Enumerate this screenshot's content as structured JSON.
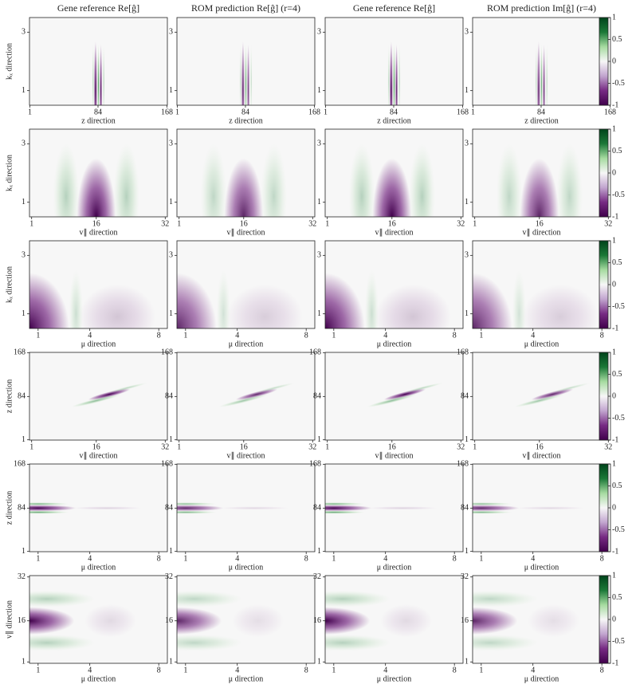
{
  "chart_data": {
    "type": "heatmap",
    "titles": [
      "Gene reference Re[ĝ]",
      "ROM prediction Re[ĝ] (r=4)",
      "Gene reference Re[ĝ]",
      "ROM prediction Im[ĝ] (r=4)"
    ],
    "colormap": [
      "#40004b",
      "#762a83",
      "#c2a5cf",
      "#f7f7f7",
      "#a6dba0",
      "#1b7837",
      "#00441b"
    ],
    "clim": [
      -1,
      1
    ],
    "colorbar_ticks": [
      1,
      0.5,
      0,
      -0.5,
      -1
    ],
    "rows": [
      {
        "xlabel": "z direction",
        "ylabel": "kₓ direction",
        "xlim": [
          0.5,
          168.5
        ],
        "xticks": [
          1,
          84,
          168
        ],
        "ylim": [
          0.5,
          3.5
        ],
        "yticks": [
          1,
          3
        ]
      },
      {
        "xlabel": "v∥ direction",
        "ylabel": "kₓ direction",
        "xlim": [
          0.5,
          32.5
        ],
        "xticks": [
          1,
          16,
          32
        ],
        "ylim": [
          0.5,
          3.5
        ],
        "yticks": [
          1,
          3
        ]
      },
      {
        "xlabel": "μ direction",
        "ylabel": "kₓ direction",
        "xlim": [
          0.5,
          8.5
        ],
        "xticks": [
          1,
          4,
          8
        ],
        "ylim": [
          0.5,
          3.5
        ],
        "yticks": [
          1,
          3
        ]
      },
      {
        "xlabel": "v∥ direction",
        "ylabel": "z direction",
        "xlim": [
          0.5,
          32.5
        ],
        "xticks": [
          1,
          16,
          32
        ],
        "ylim": [
          0.5,
          168.5
        ],
        "yticks": [
          1,
          84,
          168
        ]
      },
      {
        "xlabel": "μ direction",
        "ylabel": "z direction",
        "xlim": [
          0.5,
          8.5
        ],
        "xticks": [
          1,
          4,
          8
        ],
        "ylim": [
          0.5,
          168.5
        ],
        "yticks": [
          1,
          84,
          168
        ]
      },
      {
        "xlabel": "μ direction",
        "ylabel": "v∥ direction",
        "xlim": [
          0.5,
          8.5
        ],
        "xticks": [
          1,
          4,
          8
        ],
        "ylim": [
          0.5,
          32.5
        ],
        "yticks": [
          1,
          16,
          32
        ]
      }
    ]
  }
}
